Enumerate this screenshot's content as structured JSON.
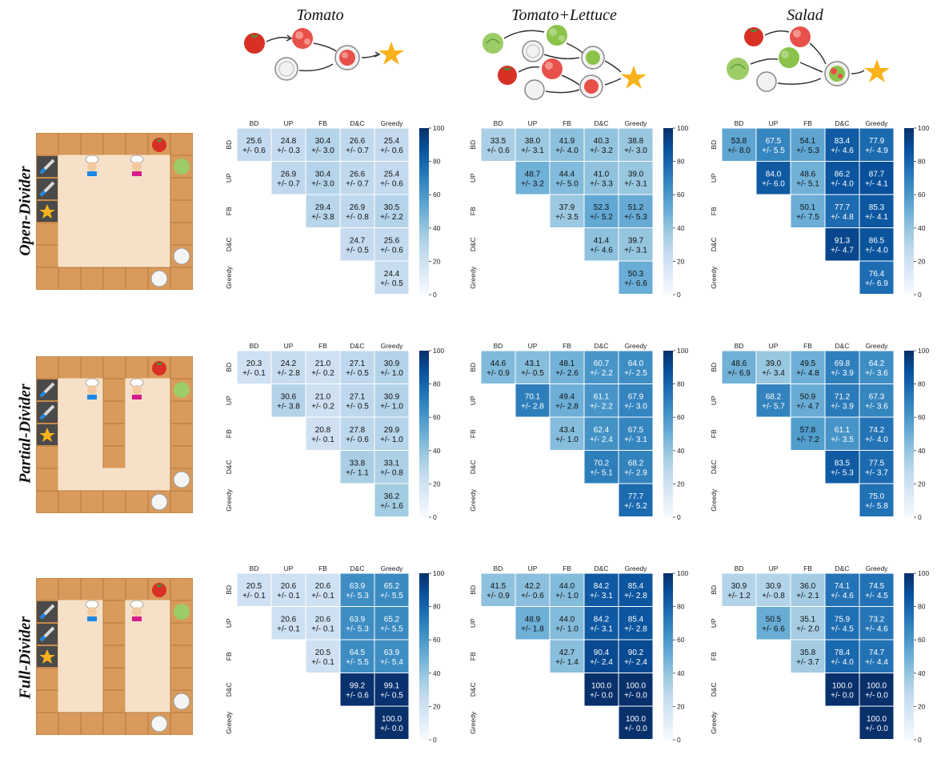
{
  "columns": [
    "Tomato",
    "Tomato+Lettuce",
    "Salad"
  ],
  "rows": [
    "Open-Divider",
    "Partial-Divider",
    "Full-Divider"
  ],
  "colorbar": {
    "min": 0,
    "max": 100,
    "ticks": [
      "0",
      "20",
      "40",
      "60",
      "80",
      "100"
    ],
    "colormap": "Blues"
  },
  "chart_data": [
    {
      "type": "heatmap",
      "layout": "Open-Divider",
      "recipe": "Tomato",
      "xlabels": [
        "BD",
        "UP",
        "FB",
        "D&C",
        "Greedy"
      ],
      "ylabels": [
        "BD",
        "UP",
        "FB",
        "D&C",
        "Greedy"
      ],
      "values": [
        [
          25.6,
          24.8,
          30.4,
          26.6,
          25.4
        ],
        [
          null,
          26.9,
          30.4,
          26.6,
          25.4
        ],
        [
          null,
          null,
          29.4,
          26.9,
          30.5
        ],
        [
          null,
          null,
          null,
          24.7,
          25.6
        ],
        [
          null,
          null,
          null,
          null,
          24.4
        ]
      ],
      "std": [
        [
          0.6,
          0.3,
          3.0,
          0.7,
          0.6
        ],
        [
          null,
          0.7,
          3.0,
          0.7,
          0.6
        ],
        [
          null,
          null,
          3.8,
          0.8,
          2.2
        ],
        [
          null,
          null,
          null,
          0.5,
          0.6
        ],
        [
          null,
          null,
          null,
          null,
          0.5
        ]
      ]
    },
    {
      "type": "heatmap",
      "layout": "Open-Divider",
      "recipe": "Tomato+Lettuce",
      "xlabels": [
        "BD",
        "UP",
        "FB",
        "D&C",
        "Greedy"
      ],
      "ylabels": [
        "BD",
        "UP",
        "FB",
        "D&C",
        "Greedy"
      ],
      "values": [
        [
          33.5,
          38.0,
          41.9,
          40.3,
          38.8
        ],
        [
          null,
          48.7,
          44.4,
          41.0,
          39.0
        ],
        [
          null,
          null,
          37.9,
          52.3,
          51.2
        ],
        [
          null,
          null,
          null,
          41.4,
          39.7
        ],
        [
          null,
          null,
          null,
          null,
          50.3
        ]
      ],
      "std": [
        [
          0.6,
          3.1,
          4.0,
          3.2,
          3.0
        ],
        [
          null,
          3.2,
          5.0,
          3.3,
          3.1
        ],
        [
          null,
          null,
          3.5,
          5.2,
          5.3
        ],
        [
          null,
          null,
          null,
          4.6,
          3.1
        ],
        [
          null,
          null,
          null,
          null,
          6.6
        ]
      ]
    },
    {
      "type": "heatmap",
      "layout": "Open-Divider",
      "recipe": "Salad",
      "xlabels": [
        "BD",
        "UP",
        "FB",
        "D&C",
        "Greedy"
      ],
      "ylabels": [
        "BD",
        "UP",
        "FB",
        "D&C",
        "Greedy"
      ],
      "values": [
        [
          53.8,
          67.5,
          54.1,
          83.4,
          77.9
        ],
        [
          null,
          84.0,
          48.6,
          86.2,
          87.7
        ],
        [
          null,
          null,
          50.1,
          77.7,
          85.3
        ],
        [
          null,
          null,
          null,
          91.3,
          86.5
        ],
        [
          null,
          null,
          null,
          null,
          76.4
        ]
      ],
      "std": [
        [
          8.0,
          5.5,
          5.3,
          4.6,
          4.9
        ],
        [
          null,
          6.0,
          5.1,
          4.0,
          4.1
        ],
        [
          null,
          null,
          7.5,
          4.8,
          4.1
        ],
        [
          null,
          null,
          null,
          4.7,
          4.0
        ],
        [
          null,
          null,
          null,
          null,
          6.9
        ]
      ]
    },
    {
      "type": "heatmap",
      "layout": "Partial-Divider",
      "recipe": "Tomato",
      "xlabels": [
        "BD",
        "UP",
        "FB",
        "D&C",
        "Greedy"
      ],
      "ylabels": [
        "BD",
        "UP",
        "FB",
        "D&C",
        "Greedy"
      ],
      "values": [
        [
          20.3,
          24.2,
          21.0,
          27.1,
          30.9
        ],
        [
          null,
          30.6,
          21.0,
          27.1,
          30.9
        ],
        [
          null,
          null,
          20.8,
          27.8,
          29.9
        ],
        [
          null,
          null,
          null,
          33.8,
          33.1
        ],
        [
          null,
          null,
          null,
          null,
          36.2
        ]
      ],
      "std": [
        [
          0.1,
          2.8,
          0.2,
          0.5,
          1.0
        ],
        [
          null,
          3.8,
          0.2,
          0.5,
          1.0
        ],
        [
          null,
          null,
          0.1,
          0.6,
          1.0
        ],
        [
          null,
          null,
          null,
          1.1,
          0.8
        ],
        [
          null,
          null,
          null,
          null,
          1.6
        ]
      ]
    },
    {
      "type": "heatmap",
      "layout": "Partial-Divider",
      "recipe": "Tomato+Lettuce",
      "xlabels": [
        "BD",
        "UP",
        "FB",
        "D&C",
        "Greedy"
      ],
      "ylabels": [
        "BD",
        "UP",
        "FB",
        "D&C",
        "Greedy"
      ],
      "values": [
        [
          44.6,
          43.1,
          48.1,
          60.7,
          64.0
        ],
        [
          null,
          70.1,
          49.4,
          61.1,
          67.9
        ],
        [
          null,
          null,
          43.4,
          62.4,
          67.5
        ],
        [
          null,
          null,
          null,
          70.2,
          68.2
        ],
        [
          null,
          null,
          null,
          null,
          77.7
        ]
      ],
      "std": [
        [
          0.9,
          0.5,
          2.6,
          2.2,
          2.5
        ],
        [
          null,
          2.8,
          2.8,
          2.2,
          3.0
        ],
        [
          null,
          null,
          1.0,
          2.4,
          3.1
        ],
        [
          null,
          null,
          null,
          5.1,
          2.9
        ],
        [
          null,
          null,
          null,
          null,
          5.2
        ]
      ]
    },
    {
      "type": "heatmap",
      "layout": "Partial-Divider",
      "recipe": "Salad",
      "xlabels": [
        "BD",
        "UP",
        "FB",
        "D&C",
        "Greedy"
      ],
      "ylabels": [
        "BD",
        "UP",
        "FB",
        "D&C",
        "Greedy"
      ],
      "values": [
        [
          48.6,
          39.0,
          49.5,
          69.8,
          64.2
        ],
        [
          null,
          68.2,
          50.9,
          71.2,
          67.3
        ],
        [
          null,
          null,
          57.8,
          61.1,
          74.2
        ],
        [
          null,
          null,
          null,
          83.5,
          77.5
        ],
        [
          null,
          null,
          null,
          null,
          75.0
        ]
      ],
      "std": [
        [
          6.9,
          3.4,
          4.8,
          3.9,
          3.6
        ],
        [
          null,
          5.7,
          4.7,
          3.9,
          3.6
        ],
        [
          null,
          null,
          7.2,
          3.5,
          4.0
        ],
        [
          null,
          null,
          null,
          5.3,
          3.7
        ],
        [
          null,
          null,
          null,
          null,
          5.8
        ]
      ]
    },
    {
      "type": "heatmap",
      "layout": "Full-Divider",
      "recipe": "Tomato",
      "xlabels": [
        "BD",
        "UP",
        "FB",
        "D&C",
        "Greedy"
      ],
      "ylabels": [
        "BD",
        "UP",
        "FB",
        "D&C",
        "Greedy"
      ],
      "values": [
        [
          20.5,
          20.6,
          20.6,
          63.9,
          65.2
        ],
        [
          null,
          20.6,
          20.6,
          63.9,
          65.2
        ],
        [
          null,
          null,
          20.5,
          64.5,
          63.9
        ],
        [
          null,
          null,
          null,
          99.2,
          99.1
        ],
        [
          null,
          null,
          null,
          null,
          100.0
        ]
      ],
      "std": [
        [
          0.1,
          0.1,
          0.1,
          5.3,
          5.5
        ],
        [
          null,
          0.1,
          0.1,
          5.3,
          5.5
        ],
        [
          null,
          null,
          0.1,
          5.5,
          5.4
        ],
        [
          null,
          null,
          null,
          0.6,
          0.5
        ],
        [
          null,
          null,
          null,
          null,
          0.0
        ]
      ]
    },
    {
      "type": "heatmap",
      "layout": "Full-Divider",
      "recipe": "Tomato+Lettuce",
      "xlabels": [
        "BD",
        "UP",
        "FB",
        "D&C",
        "Greedy"
      ],
      "ylabels": [
        "BD",
        "UP",
        "FB",
        "D&C",
        "Greedy"
      ],
      "values": [
        [
          41.5,
          42.2,
          44.0,
          84.2,
          85.4
        ],
        [
          null,
          48.9,
          44.0,
          84.2,
          85.4
        ],
        [
          null,
          null,
          42.7,
          90.4,
          90.2
        ],
        [
          null,
          null,
          null,
          100.0,
          100.0
        ],
        [
          null,
          null,
          null,
          null,
          100.0
        ]
      ],
      "std": [
        [
          0.9,
          0.6,
          1.0,
          3.1,
          2.8
        ],
        [
          null,
          1.8,
          1.0,
          3.1,
          2.8
        ],
        [
          null,
          null,
          1.4,
          2.4,
          2.4
        ],
        [
          null,
          null,
          null,
          0.0,
          0.0
        ],
        [
          null,
          null,
          null,
          null,
          0.0
        ]
      ]
    },
    {
      "type": "heatmap",
      "layout": "Full-Divider",
      "recipe": "Salad",
      "xlabels": [
        "BD",
        "UP",
        "FB",
        "D&C",
        "Greedy"
      ],
      "ylabels": [
        "BD",
        "UP",
        "FB",
        "D&C",
        "Greedy"
      ],
      "values": [
        [
          30.9,
          30.9,
          36.0,
          74.1,
          74.5
        ],
        [
          null,
          50.5,
          35.1,
          75.9,
          73.2
        ],
        [
          null,
          null,
          35.8,
          78.4,
          74.7
        ],
        [
          null,
          null,
          null,
          100.0,
          100.0
        ],
        [
          null,
          null,
          null,
          null,
          100.0
        ]
      ],
      "std": [
        [
          1.2,
          0.8,
          2.1,
          4.6,
          4.5
        ],
        [
          null,
          6.6,
          2.0,
          4.5,
          4.6
        ],
        [
          null,
          null,
          3.7,
          4.0,
          4.4
        ],
        [
          null,
          null,
          null,
          0.0,
          0.0
        ],
        [
          null,
          null,
          null,
          null,
          0.0
        ]
      ]
    }
  ]
}
